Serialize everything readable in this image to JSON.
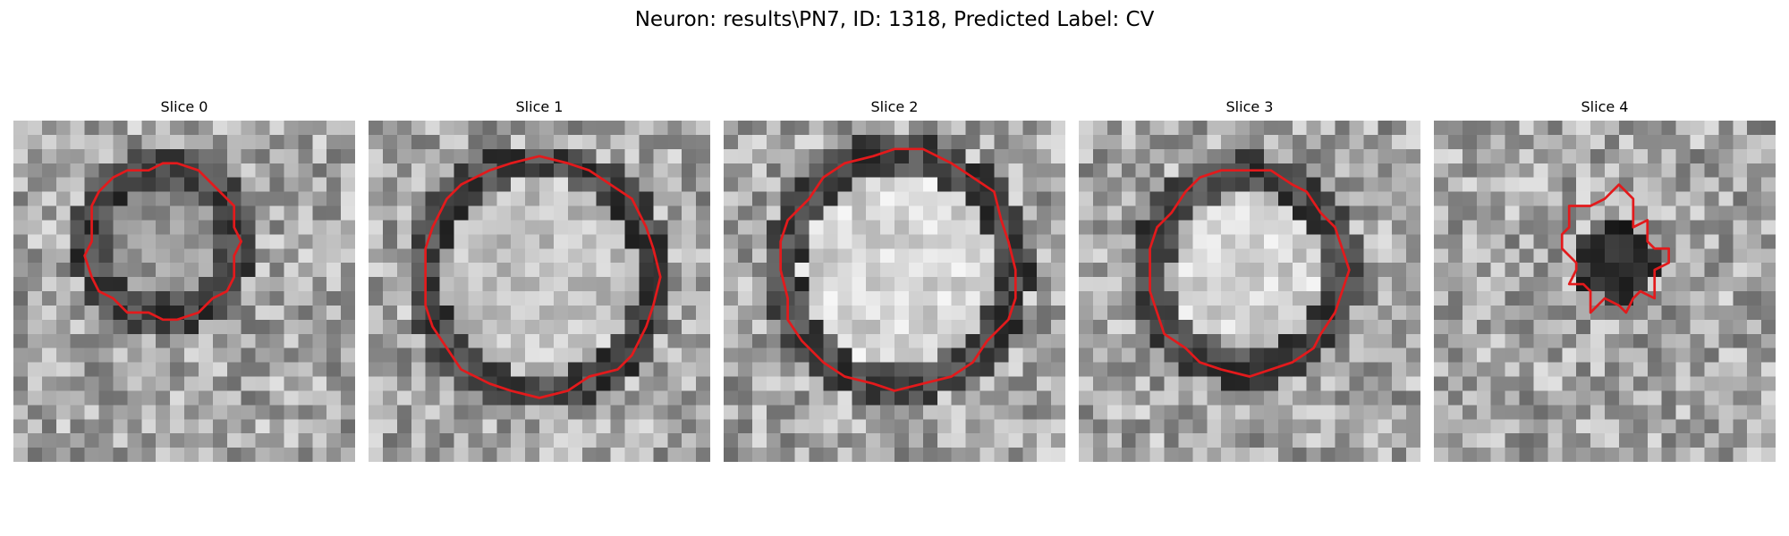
{
  "figure": {
    "title": "Neuron: results\\PN7, ID: 1318, Predicted Label: CV"
  },
  "contour_color": "#e31a1c",
  "slices": [
    {
      "label": "Slice 0"
    },
    {
      "label": "Slice 1"
    },
    {
      "label": "Slice 2"
    },
    {
      "label": "Slice 3"
    },
    {
      "label": "Slice 4"
    }
  ]
}
